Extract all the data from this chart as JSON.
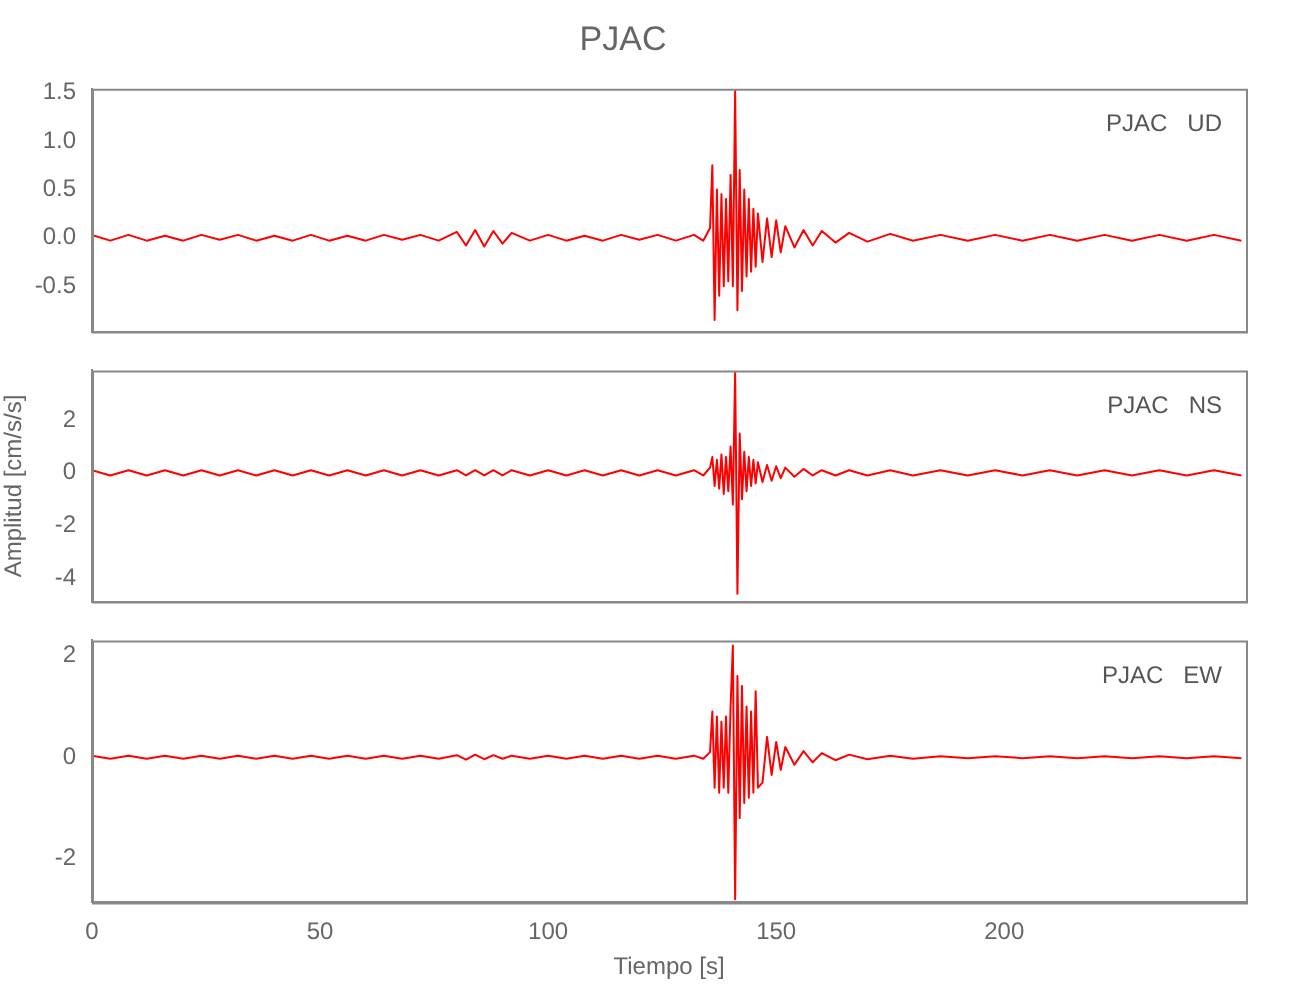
{
  "chart_data": [
    {
      "type": "line",
      "title": "PJAC",
      "annotations": [
        "PJAC   UD"
      ],
      "tick_labels": "y",
      "xlim": [
        0,
        253
      ],
      "xticks": [
        0,
        50,
        100,
        150,
        200
      ],
      "ylim": [
        -0.97,
        1.54
      ],
      "yticks": [
        -0.5,
        {
          "value": 0,
          "label": "0.0"
        },
        {
          "value": 0.5,
          "label": "0.5"
        },
        {
          "value": 1,
          "label": "1.0"
        },
        {
          "value": 1.5,
          "label": "1.5"
        }
      ],
      "x": [
        0,
        4,
        8,
        12,
        16,
        20,
        24,
        28,
        32,
        36,
        40,
        44,
        48,
        52,
        56,
        60,
        64,
        68,
        72,
        76,
        80,
        82,
        84,
        86,
        88,
        90,
        92,
        96,
        100,
        104,
        108,
        112,
        116,
        120,
        124,
        128,
        132,
        134,
        135.5,
        136,
        136.5,
        137,
        137.5,
        138,
        138.5,
        139,
        139.5,
        140,
        140.5,
        141,
        141.5,
        142,
        142.5,
        143,
        143.5,
        144,
        144.5,
        145,
        145.5,
        146,
        147,
        148,
        149,
        150,
        151,
        152,
        154,
        156,
        158,
        160,
        163,
        166,
        170,
        175,
        180,
        186,
        192,
        198,
        204,
        210,
        216,
        222,
        228,
        234,
        240,
        246,
        252
      ],
      "series": [
        {
          "color": "#ff0000",
          "values": [
            0.03,
            -0.03,
            0.03,
            -0.03,
            0.02,
            -0.03,
            0.03,
            -0.02,
            0.03,
            -0.03,
            0.02,
            -0.03,
            0.03,
            -0.03,
            0.02,
            -0.03,
            0.03,
            -0.02,
            0.03,
            -0.03,
            0.06,
            -0.08,
            0.08,
            -0.09,
            0.07,
            -0.06,
            0.05,
            -0.03,
            0.03,
            -0.03,
            0.02,
            -0.03,
            0.03,
            -0.02,
            0.03,
            -0.03,
            0.03,
            -0.03,
            0.1,
            0.75,
            -0.85,
            0.5,
            -0.6,
            0.45,
            -0.5,
            0.4,
            -0.45,
            0.65,
            -0.5,
            1.52,
            -0.75,
            0.7,
            -0.55,
            0.5,
            -0.4,
            0.4,
            -0.35,
            0.3,
            -0.3,
            0.25,
            -0.25,
            0.2,
            -0.2,
            0.18,
            -0.15,
            0.12,
            -0.1,
            0.08,
            -0.08,
            0.07,
            -0.05,
            0.05,
            -0.04,
            0.04,
            -0.03,
            0.03,
            -0.03,
            0.03,
            -0.03,
            0.03,
            -0.03,
            0.03,
            -0.03,
            0.03,
            -0.03,
            0.03,
            -0.03
          ]
        }
      ]
    },
    {
      "type": "line",
      "ylabel": "Amplitud [cm/s/s]",
      "annotations": [
        "PJAC   NS"
      ],
      "tick_labels": "y",
      "xlim": [
        0,
        253
      ],
      "xticks": [
        0,
        50,
        100,
        150,
        200
      ],
      "ylim": [
        -4.9,
        3.9
      ],
      "yticks": [
        -4,
        -2,
        0,
        2
      ],
      "x": [
        0,
        4,
        8,
        12,
        16,
        20,
        24,
        28,
        32,
        36,
        40,
        44,
        48,
        52,
        56,
        60,
        64,
        68,
        72,
        76,
        80,
        82,
        84,
        86,
        88,
        90,
        92,
        96,
        100,
        104,
        108,
        112,
        116,
        120,
        124,
        128,
        132,
        134,
        135.5,
        136,
        136.5,
        137,
        137.5,
        138,
        138.5,
        139,
        139.5,
        140,
        140.5,
        141,
        141.5,
        142,
        142.5,
        143,
        143.5,
        144,
        144.5,
        145,
        145.5,
        146,
        147,
        148,
        149,
        150,
        151,
        152,
        154,
        156,
        158,
        160,
        163,
        166,
        170,
        175,
        180,
        186,
        192,
        198,
        204,
        210,
        216,
        222,
        228,
        234,
        240,
        246,
        252
      ],
      "series": [
        {
          "color": "#ff0000",
          "values": [
            0.1,
            -0.1,
            0.1,
            -0.1,
            0.1,
            -0.1,
            0.1,
            -0.1,
            0.1,
            -0.1,
            0.1,
            -0.1,
            0.1,
            -0.1,
            0.1,
            -0.1,
            0.1,
            -0.1,
            0.1,
            -0.1,
            0.1,
            -0.1,
            0.1,
            -0.1,
            0.1,
            -0.1,
            0.1,
            -0.1,
            0.1,
            -0.1,
            0.1,
            -0.1,
            0.1,
            -0.1,
            0.1,
            -0.1,
            0.1,
            -0.1,
            0.2,
            0.6,
            -0.5,
            0.5,
            -0.6,
            0.7,
            -0.8,
            0.6,
            -0.7,
            1.0,
            -1.2,
            3.85,
            -4.6,
            1.5,
            -1.0,
            0.8,
            -0.7,
            0.6,
            -0.5,
            0.5,
            -0.4,
            0.4,
            -0.35,
            0.3,
            -0.3,
            0.25,
            -0.2,
            0.2,
            -0.15,
            0.15,
            -0.1,
            0.1,
            -0.1,
            0.1,
            -0.1,
            0.1,
            -0.1,
            0.1,
            -0.1,
            0.1,
            -0.1,
            0.1,
            -0.1,
            0.1,
            -0.1,
            0.1,
            -0.1,
            0.1,
            -0.1
          ]
        }
      ]
    },
    {
      "type": "line",
      "xlabel": "Tiempo [s]",
      "annotations": [
        "PJAC   EW"
      ],
      "xlim": [
        0,
        253
      ],
      "xticks": [
        0,
        50,
        100,
        150,
        200
      ],
      "ylim": [
        -2.86,
        2.3
      ],
      "yticks": [
        -2,
        0,
        2
      ],
      "x": [
        0,
        4,
        8,
        12,
        16,
        20,
        24,
        28,
        32,
        36,
        40,
        44,
        48,
        52,
        56,
        60,
        64,
        68,
        72,
        76,
        80,
        82,
        84,
        86,
        88,
        90,
        92,
        96,
        100,
        104,
        108,
        112,
        116,
        120,
        124,
        128,
        132,
        134,
        135.5,
        136,
        136.5,
        137,
        137.5,
        138,
        138.5,
        139,
        139.5,
        140,
        140.5,
        141,
        141.5,
        142,
        142.5,
        143,
        143.5,
        144,
        144.5,
        145,
        145.5,
        146,
        147,
        148,
        149,
        150,
        151,
        152,
        154,
        156,
        158,
        160,
        163,
        166,
        170,
        175,
        180,
        186,
        192,
        198,
        204,
        210,
        216,
        222,
        228,
        234,
        240,
        246,
        252
      ],
      "series": [
        {
          "color": "#ff0000",
          "values": [
            0.03,
            -0.03,
            0.03,
            -0.03,
            0.03,
            -0.03,
            0.03,
            -0.03,
            0.03,
            -0.03,
            0.03,
            -0.03,
            0.03,
            -0.03,
            0.03,
            -0.03,
            0.03,
            -0.03,
            0.03,
            -0.03,
            0.04,
            -0.05,
            0.05,
            -0.04,
            0.04,
            -0.03,
            0.03,
            -0.03,
            0.03,
            -0.03,
            0.03,
            -0.03,
            0.03,
            -0.03,
            0.03,
            -0.03,
            0.03,
            -0.03,
            0.1,
            0.9,
            -0.6,
            0.8,
            -0.7,
            0.7,
            -0.6,
            0.8,
            -0.7,
            1.0,
            2.2,
            -2.8,
            1.6,
            -1.2,
            1.4,
            -0.9,
            1.0,
            -0.8,
            0.9,
            -0.7,
            1.3,
            -0.6,
            -0.5,
            0.4,
            -0.35,
            0.3,
            -0.25,
            0.2,
            -0.15,
            0.12,
            -0.1,
            0.08,
            -0.06,
            0.05,
            -0.04,
            0.03,
            -0.03,
            0.02,
            -0.02,
            0.02,
            -0.02,
            0.02,
            -0.02,
            0.02,
            -0.02,
            0.02,
            -0.02,
            0.02,
            -0.02
          ]
        }
      ]
    }
  ]
}
